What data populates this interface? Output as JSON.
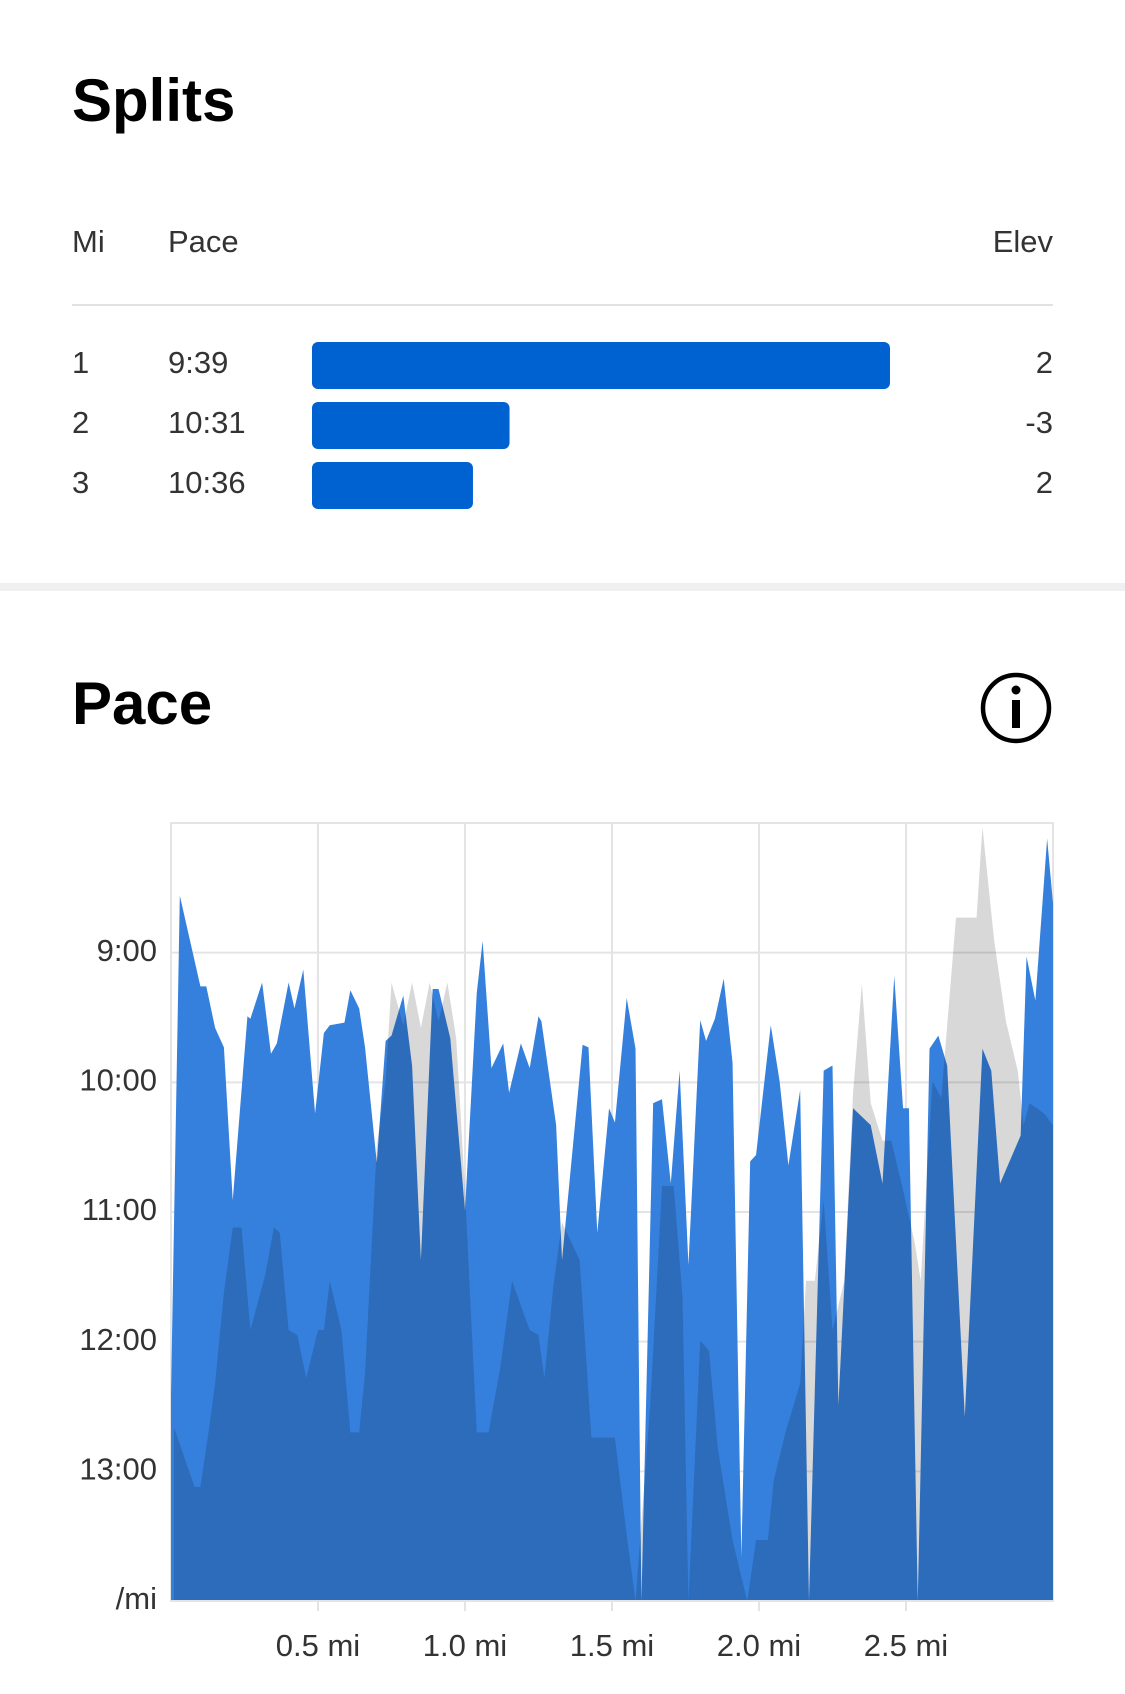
{
  "splits": {
    "title": "Splits",
    "columns": {
      "mile": "Mi",
      "pace": "Pace",
      "elev": "Elev"
    },
    "rows": [
      {
        "mile": 1,
        "pace": 579,
        "pace_label": "9:39",
        "elev": 2
      },
      {
        "mile": 2,
        "pace": 631,
        "pace_label": "10:31",
        "elev": -3
      },
      {
        "mile": 3,
        "pace": 636,
        "pace_label": "10:36",
        "elev": 2
      }
    ],
    "bar_lim": [
      658,
      579
    ],
    "bar_color": "#0062d1"
  },
  "chart_data": {
    "type": "area",
    "title": "Pace",
    "xlim": [
      0,
      3
    ],
    "xticks": [
      {
        "value": 0.5,
        "label": "0.5 mi"
      },
      {
        "value": 1.0,
        "label": "1.0 mi"
      },
      {
        "value": 1.5,
        "label": "1.5 mi"
      },
      {
        "value": 2.0,
        "label": "2.0 mi"
      },
      {
        "value": 2.5,
        "label": "2.5 mi"
      }
    ],
    "ylim": [
      14,
      8
    ],
    "yticks": [
      {
        "value": 9,
        "label": "9:00"
      },
      {
        "value": 10,
        "label": "10:00"
      },
      {
        "value": 11,
        "label": "11:00"
      },
      {
        "value": 12,
        "label": "12:00"
      },
      {
        "value": 13,
        "label": "13:00"
      },
      {
        "value": 14,
        "label": "/mi"
      }
    ],
    "grid": true,
    "series": [
      {
        "color": "#3580dd",
        "x": [
          0,
          0.03,
          0.1,
          0.12,
          0.15,
          0.18,
          0.21,
          0.26,
          0.27,
          0.31,
          0.34,
          0.36,
          0.4,
          0.42,
          0.45,
          0.49,
          0.52,
          0.54,
          0.59,
          0.61,
          0.64,
          0.66,
          0.7,
          0.73,
          0.75,
          0.79,
          0.82,
          0.85,
          0.89,
          0.91,
          0.95,
          1.0,
          1.04,
          1.06,
          1.09,
          1.13,
          1.15,
          1.19,
          1.22,
          1.25,
          1.26,
          1.31,
          1.33,
          1.4,
          1.42,
          1.45,
          1.49,
          1.51,
          1.55,
          1.58,
          1.6,
          1.64,
          1.67,
          1.7,
          1.73,
          1.76,
          1.8,
          1.82,
          1.85,
          1.88,
          1.91,
          1.94,
          1.97,
          1.99,
          2.04,
          2.07,
          2.1,
          2.14,
          2.17,
          2.22,
          2.25,
          2.27,
          2.32,
          2.38,
          2.42,
          2.46,
          2.49,
          2.51,
          2.54,
          2.58,
          2.61,
          2.64,
          2.7,
          2.76,
          2.79,
          2.82,
          2.89,
          2.91,
          2.94,
          2.98,
          3.0
        ],
        "values": [
          12.4,
          8.56,
          9.26,
          9.26,
          9.58,
          9.73,
          10.91,
          9.49,
          9.51,
          9.23,
          9.78,
          9.7,
          9.23,
          9.43,
          9.13,
          10.24,
          9.62,
          9.56,
          9.54,
          9.29,
          9.43,
          9.73,
          10.62,
          9.68,
          9.64,
          9.33,
          9.87,
          11.37,
          9.28,
          9.28,
          9.66,
          10.99,
          9.31,
          8.91,
          9.89,
          9.7,
          10.08,
          9.7,
          9.89,
          9.49,
          9.53,
          10.33,
          11.37,
          9.71,
          9.73,
          11.16,
          10.2,
          10.31,
          9.35,
          9.74,
          14,
          10.16,
          10.13,
          10.78,
          9.91,
          11.41,
          9.52,
          9.68,
          9.51,
          9.2,
          9.85,
          13.66,
          10.61,
          10.56,
          9.56,
          9.99,
          10.64,
          10.06,
          14,
          9.91,
          9.87,
          12.49,
          10.2,
          10.33,
          10.78,
          9.18,
          10.2,
          10.2,
          14,
          9.74,
          9.64,
          9.87,
          12.58,
          9.74,
          9.91,
          10.78,
          10.41,
          9.03,
          9.37,
          8.12,
          8.62
        ]
      },
      {
        "color": "#d8d8d8",
        "x": [
          0.01,
          0.03,
          0.08,
          0.1,
          0.13,
          0.15,
          0.18,
          0.21,
          0.24,
          0.27,
          0.32,
          0.35,
          0.37,
          0.4,
          0.43,
          0.46,
          0.5,
          0.52,
          0.54,
          0.58,
          0.61,
          0.64,
          0.66,
          0.7,
          0.73,
          0.75,
          0.79,
          0.82,
          0.85,
          0.88,
          0.91,
          0.94,
          0.97,
          1.0,
          1.04,
          1.08,
          1.12,
          1.16,
          1.22,
          1.25,
          1.27,
          1.3,
          1.33,
          1.39,
          1.43,
          1.48,
          1.51,
          1.55,
          1.58,
          1.63,
          1.67,
          1.71,
          1.74,
          1.76,
          1.8,
          1.83,
          1.86,
          1.91,
          1.96,
          1.99,
          2.03,
          2.05,
          2.09,
          2.14,
          2.16,
          2.19,
          2.22,
          2.25,
          2.29,
          2.32,
          2.35,
          2.38,
          2.42,
          2.45,
          2.49,
          2.53,
          2.55,
          2.59,
          2.62,
          2.67,
          2.71,
          2.74,
          2.76,
          2.8,
          2.84,
          2.88,
          2.9,
          2.92,
          2.97,
          3.0
        ],
        "values": [
          12.66,
          12.79,
          13.12,
          13.12,
          12.66,
          12.32,
          11.62,
          11.12,
          11.12,
          11.91,
          11.49,
          11.12,
          11.16,
          11.91,
          11.95,
          12.28,
          11.91,
          11.91,
          11.53,
          11.91,
          12.7,
          12.7,
          12.24,
          10.49,
          9.99,
          9.23,
          9.56,
          9.23,
          9.58,
          9.23,
          9.53,
          9.23,
          9.66,
          10.83,
          12.7,
          12.7,
          12.2,
          11.53,
          11.91,
          11.95,
          12.28,
          11.58,
          11.08,
          11.37,
          12.74,
          12.74,
          12.74,
          13.49,
          14,
          12.49,
          10.8,
          10.8,
          11.66,
          14,
          11.99,
          12.07,
          12.82,
          13.53,
          14,
          13.53,
          13.53,
          13.07,
          12.7,
          12.32,
          11.53,
          11.53,
          10.91,
          11.91,
          11.53,
          10.08,
          9.24,
          10.16,
          10.45,
          10.45,
          10.83,
          11.24,
          11.53,
          9.99,
          10.12,
          8.73,
          8.73,
          8.73,
          8.03,
          8.91,
          9.53,
          9.91,
          10.33,
          10.16,
          10.24,
          10.33
        ]
      }
    ]
  }
}
